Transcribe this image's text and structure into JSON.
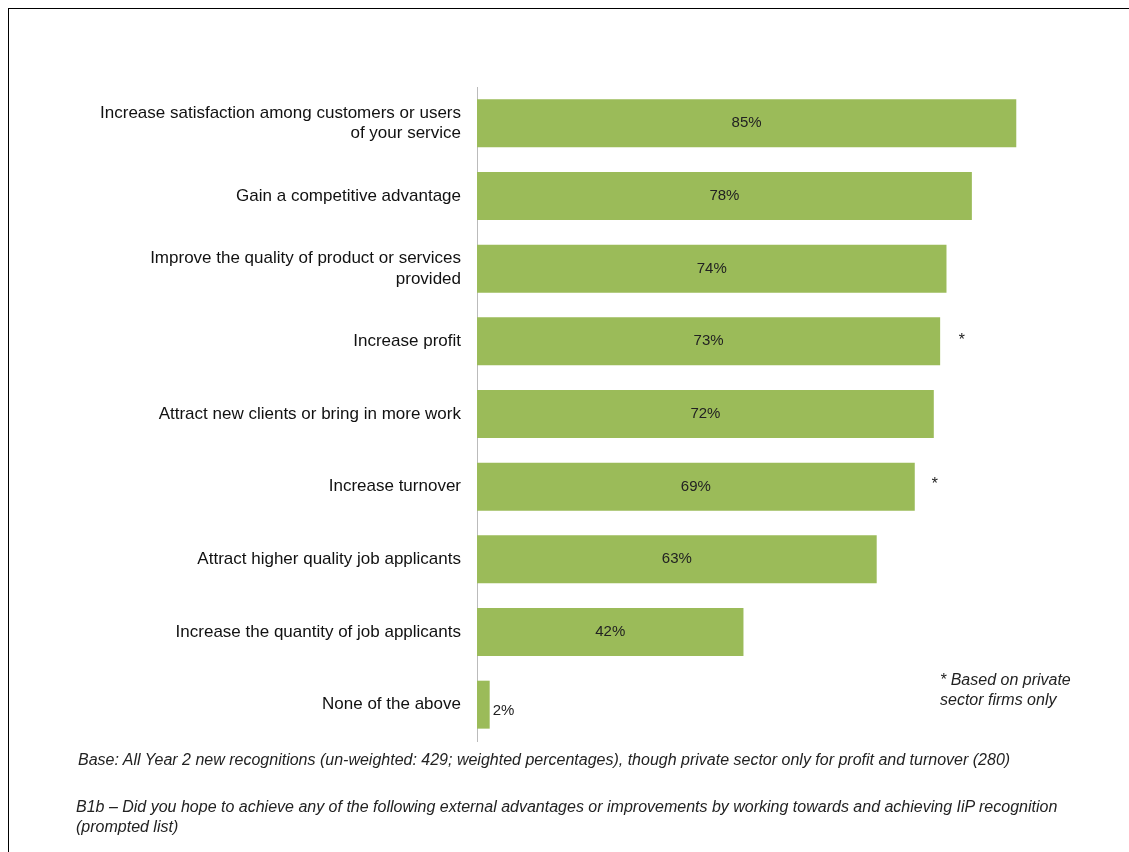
{
  "chart_data": {
    "type": "bar",
    "orientation": "horizontal",
    "categories": [
      "Increase satisfaction among customers or users of your service",
      "Gain a competitive advantage",
      "Improve the quality of product or services provided",
      "Increase profit",
      "Attract new clients or bring in more work",
      "Increase turnover",
      "Attract higher quality job applicants",
      "Increase the quantity of job applicants",
      "None of the above"
    ],
    "values": [
      85,
      78,
      74,
      73,
      72,
      69,
      63,
      42,
      2
    ],
    "value_labels": [
      "85%",
      "78%",
      "74%",
      "73%",
      "72%",
      "69%",
      "63%",
      "42%",
      "2%"
    ],
    "color": "#9bbb59",
    "tick_labels": "y",
    "legend": false,
    "annotations": [
      "*",
      "*",
      "* Based on private sector firms only",
      "Base: All Year 2 new recognitions (un-weighted: 429; weighted percentages), though private sector only for profit and turnover (280)",
      "B1b – Did you hope to achieve any of the following external advantages or improvements by working towards and achieving IiP recognition (prompted list)"
    ]
  }
}
